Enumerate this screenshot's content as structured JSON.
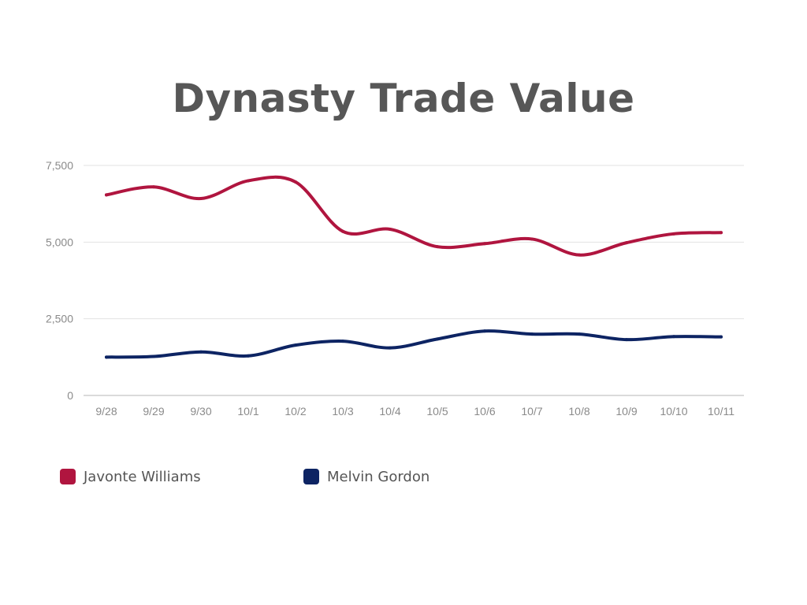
{
  "chart_data": {
    "type": "line",
    "title": "Dynasty Trade Value",
    "xlabel": "",
    "ylabel": "",
    "x": [
      "9/28",
      "9/29",
      "9/30",
      "10/1",
      "10/2",
      "10/3",
      "10/4",
      "10/5",
      "10/6",
      "10/7",
      "10/8",
      "10/9",
      "10/10",
      "10/11"
    ],
    "yticks": [
      0,
      2500,
      5000,
      7500
    ],
    "ytick_labels": [
      "0",
      "2,500",
      "5,000",
      "7,500"
    ],
    "ylim": [
      0,
      7500
    ],
    "grid": true,
    "legend_position": "bottom-left",
    "series": [
      {
        "name": "Javonte Williams",
        "color": "#b0153f",
        "values": [
          6540,
          6800,
          6420,
          7000,
          6960,
          5350,
          5420,
          4850,
          4950,
          5100,
          4580,
          4980,
          5270,
          5310
        ]
      },
      {
        "name": "Melvin Gordon",
        "color": "#0d2463",
        "values": [
          1250,
          1270,
          1420,
          1290,
          1640,
          1770,
          1550,
          1840,
          2100,
          2000,
          2000,
          1820,
          1920,
          1910
        ]
      }
    ]
  }
}
